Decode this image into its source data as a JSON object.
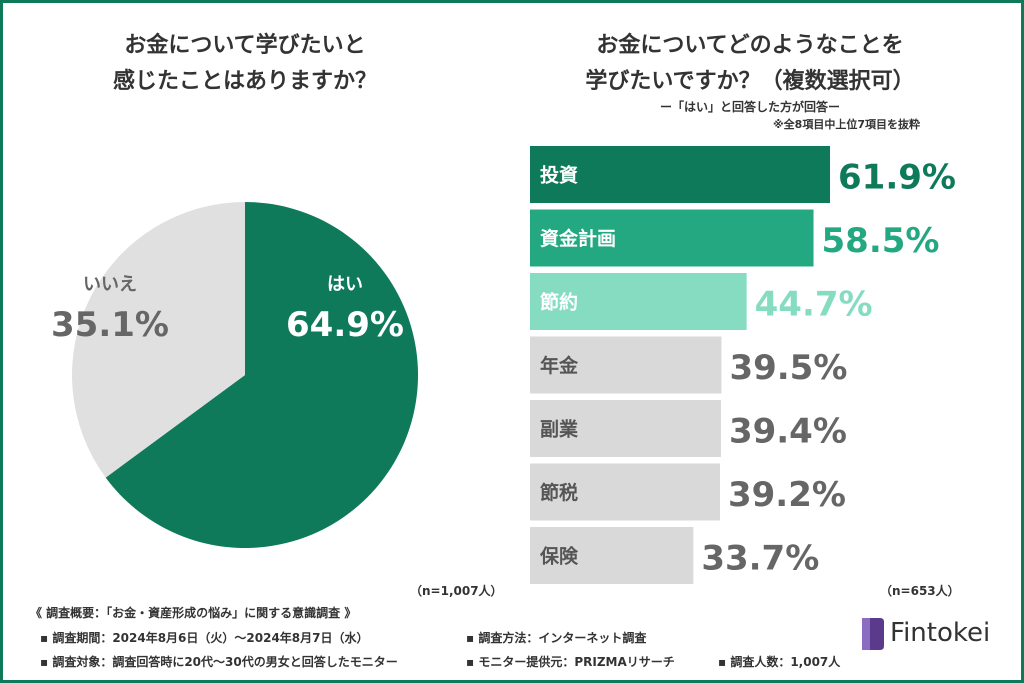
{
  "chart_data": [
    {
      "type": "pie",
      "title": "お金について学びたいと\n感じたことはありますか？",
      "slices": [
        {
          "label": "はい",
          "value": 64.9,
          "display": "64.9%",
          "color": "#0e7a5a",
          "text_color": "#ffffff"
        },
        {
          "label": "いいえ",
          "value": 35.1,
          "display": "35.1%",
          "color": "#e0e0e0",
          "text_color": "#666666"
        }
      ],
      "note": "（n=1,007人）"
    },
    {
      "type": "bar",
      "orientation": "horizontal",
      "title": "お金についてどのようなことを\n学びたいですか？（複数選択可）",
      "subtitle": "ー「はい」と回答した方が回答ー",
      "subnote": "※全8項目中上位7項目を抜粋",
      "categories": [
        "投資",
        "資金計画",
        "節約",
        "年金",
        "副業",
        "節税",
        "保険"
      ],
      "values": [
        61.9,
        58.5,
        44.7,
        39.5,
        39.4,
        39.2,
        33.7
      ],
      "labels": [
        "61.9%",
        "58.5%",
        "44.7%",
        "39.5%",
        "39.4%",
        "39.2%",
        "33.7%"
      ],
      "colors": [
        "#0e7a5a",
        "#23a882",
        "#86dcc1",
        "#d9d9d9",
        "#d9d9d9",
        "#d9d9d9",
        "#d9d9d9"
      ],
      "label_colors": [
        "#0e7a5a",
        "#23a882",
        "#86dcc1",
        "#666666",
        "#666666",
        "#666666",
        "#666666"
      ],
      "category_colors": [
        "#ffffff",
        "#ffffff",
        "#ffffff",
        "#555555",
        "#555555",
        "#555555",
        "#555555"
      ],
      "note": "（n=653人）"
    }
  ],
  "footer": {
    "title": "《 調査概要：「お金・資産形成の悩み」に関する意識調査 》",
    "period": "調査期間：2024年8月6日（火）〜2024年8月7日（水）",
    "target": "調査対象：調査回答時に20代〜30代の男女と回答したモニター",
    "method": "調査方法：インターネット調査",
    "provider": "モニター提供元：PRIZMAリサーチ",
    "count": "調査人数：1,007人"
  },
  "logo": {
    "text": "Fintokei",
    "color": "#5b3a8c"
  }
}
